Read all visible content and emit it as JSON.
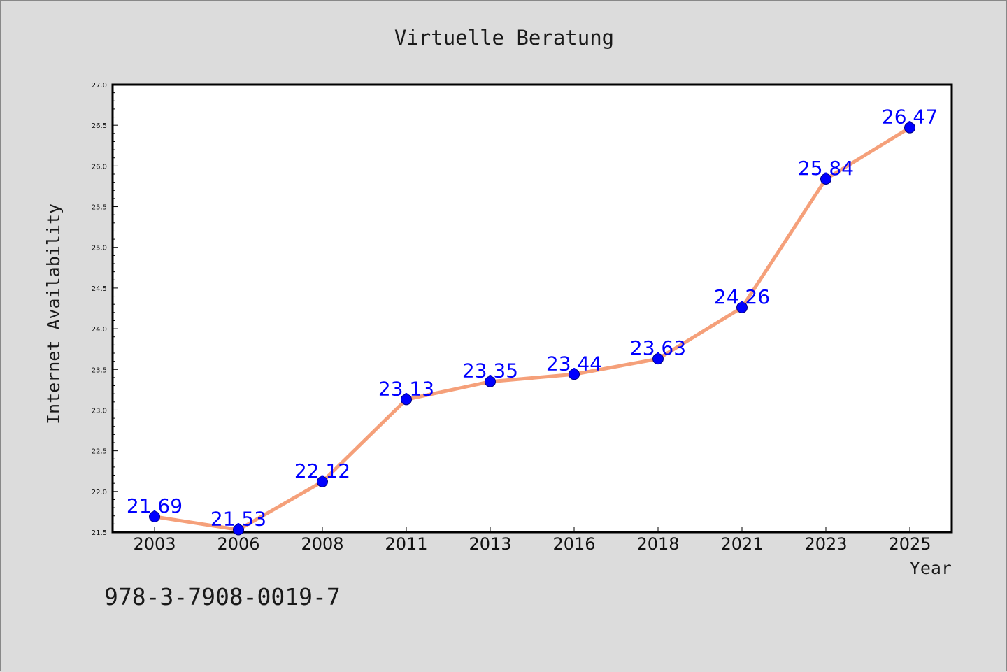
{
  "colors": {
    "background": "#dcdcdc",
    "plot_background": "#ffffff",
    "line": "#f5a07a",
    "marker": "#0000ff",
    "data_label": "#0000ff",
    "text": "#1a1a1a"
  },
  "note": "978-3-7908-0019-7",
  "chart_data": {
    "type": "line",
    "title": "Virtuelle Beratung",
    "xlabel": "Year",
    "ylabel": "Internet Availability",
    "categories": [
      "2003",
      "2006",
      "2008",
      "2011",
      "2013",
      "2016",
      "2018",
      "2021",
      "2023",
      "2025"
    ],
    "series": [
      {
        "values": [
          21.69,
          21.53,
          22.12,
          23.13,
          23.35,
          23.44,
          23.63,
          24.26,
          25.84,
          26.47
        ],
        "labels": [
          "21.69",
          "21.53",
          "22.12",
          "23.13",
          "23.35",
          "23.44",
          "23.63",
          "24.26",
          "25.84",
          "26.47"
        ]
      }
    ],
    "ylim": [
      21.5,
      27.0
    ],
    "yticks": [
      "21.5",
      "22.0",
      "22.5",
      "23.0",
      "23.5",
      "24.0",
      "24.5",
      "25.0",
      "25.5",
      "26.0",
      "26.5",
      "27.0"
    ],
    "ytick_values": [
      21.5,
      22.0,
      22.5,
      23.0,
      23.5,
      24.0,
      24.5,
      25.0,
      25.5,
      26.0,
      26.5,
      27.0
    ],
    "minor_y_step": 0.1,
    "grid": false,
    "legend": "none"
  }
}
